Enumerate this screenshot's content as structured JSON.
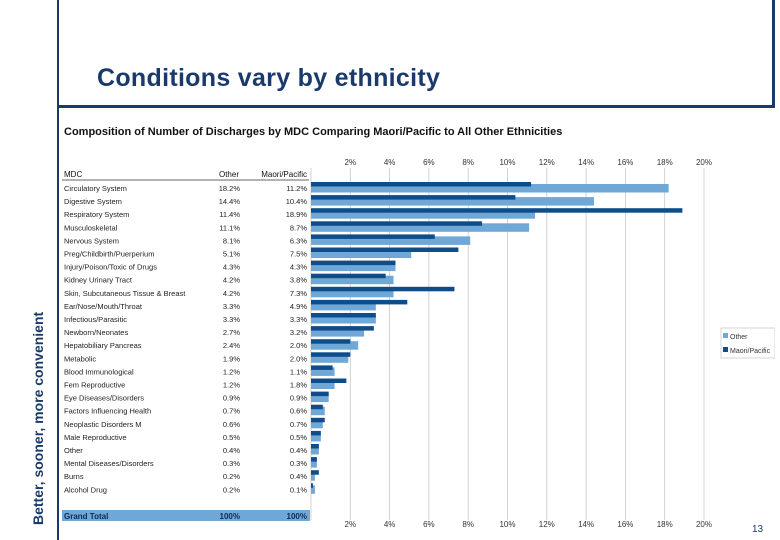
{
  "slide": {
    "tagline": "Better, sooner, more convenient",
    "title": "Conditions vary by ethnicity",
    "page_number": "13"
  },
  "colors": {
    "accent": "#1a3a6b",
    "other": "#6fa8d6",
    "maori_pacific": "#0f4c8a"
  },
  "chart_data": {
    "type": "bar",
    "orientation": "horizontal",
    "title": "Composition of Number of Discharges by MDC Comparing Maori/Pacific to All Other Ethnicities",
    "column_headers": {
      "mdc": "MDC",
      "other": "Other",
      "maori_pacific": "Maori/Pacific"
    },
    "categories": [
      "Circulatory System",
      "Digestive System",
      "Respiratory System",
      "Musculoskeletal",
      "Nervous System",
      "Preg/Childbirth/Puerperium",
      "Injury/Poison/Toxic of Drugs",
      "Kidney Urinary Tract",
      "Skin, Subcutaneous Tissue & Breast",
      "Ear/Nose/Mouth/Throat",
      "Infectious/Parasitic",
      "Newborn/Neonates",
      "Hepatobiliary Pancreas",
      "Metabolic",
      "Blood Immunological",
      "Fem Reproductive",
      "Eye Diseases/Disorders",
      "Factors Influencing Health",
      "Neoplastic Disorders M",
      "Male Reproductive",
      "Other",
      "Mental Diseases/Disorders",
      "Burns",
      "Alcohol Drug"
    ],
    "series": [
      {
        "name": "Other",
        "values": [
          18.2,
          14.4,
          11.4,
          11.1,
          8.1,
          5.1,
          4.3,
          4.2,
          4.2,
          3.3,
          3.3,
          2.7,
          2.4,
          1.9,
          1.2,
          1.2,
          0.9,
          0.7,
          0.6,
          0.5,
          0.4,
          0.3,
          0.2,
          0.2
        ],
        "labels": [
          "18.2%",
          "14.4%",
          "11.4%",
          "11.1%",
          "8.1%",
          "5.1%",
          "4.3%",
          "4.2%",
          "4.2%",
          "3.3%",
          "3.3%",
          "2.7%",
          "2.4%",
          "1.9%",
          "1.2%",
          "1.2%",
          "0.9%",
          "0.7%",
          "0.6%",
          "0.5%",
          "0.4%",
          "0.3%",
          "0.2%",
          "0.2%"
        ]
      },
      {
        "name": "Maori/Pacific",
        "values": [
          11.2,
          10.4,
          18.9,
          8.7,
          6.3,
          7.5,
          4.3,
          3.8,
          7.3,
          4.9,
          3.3,
          3.2,
          2.0,
          2.0,
          1.1,
          1.8,
          0.9,
          0.6,
          0.7,
          0.5,
          0.4,
          0.3,
          0.4,
          0.1
        ],
        "labels": [
          "11.2%",
          "10.4%",
          "18.9%",
          "8.7%",
          "6.3%",
          "7.5%",
          "4.3%",
          "3.8%",
          "7.3%",
          "4.9%",
          "3.3%",
          "3.2%",
          "2.0%",
          "2.0%",
          "1.1%",
          "1.8%",
          "0.9%",
          "0.6%",
          "0.7%",
          "0.5%",
          "0.4%",
          "0.3%",
          "0.4%",
          "0.1%"
        ]
      }
    ],
    "total_row": {
      "label": "Grand Total",
      "other": "100%",
      "maori_pacific": "100%"
    },
    "ticks": [
      0,
      2,
      4,
      6,
      8,
      10,
      12,
      14,
      16,
      18,
      20
    ],
    "tick_labels": [
      "",
      "2%",
      "4%",
      "6%",
      "8%",
      "10%",
      "12%",
      "14%",
      "16%",
      "18%",
      "20%"
    ],
    "xlim": [
      0,
      20
    ],
    "xlabel": "",
    "ylabel": "",
    "grid": true,
    "legend": {
      "placement": "right",
      "entries": [
        "Other",
        "Maori/Pacific"
      ]
    }
  }
}
